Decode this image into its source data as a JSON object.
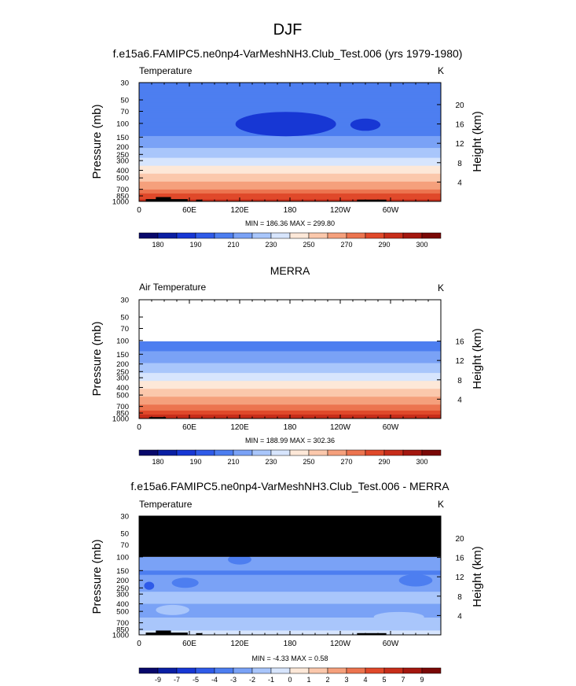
{
  "page_title": "DJF",
  "chart_data": [
    {
      "type": "heatmap",
      "title": "f.e15a6.FAMIPC5.ne0np4-VarMeshNH3.Club_Test.006 (yrs 1979-1980)",
      "left_label": "Temperature",
      "units": "K",
      "xlabel": "",
      "ylabel": "Pressure (mb)",
      "y2label": "Height (km)",
      "x_tick_labels": [
        "0",
        "60E",
        "120E",
        "180",
        "120W",
        "60W"
      ],
      "y_tick_values": [
        30,
        50,
        70,
        100,
        150,
        200,
        250,
        300,
        400,
        500,
        700,
        850,
        1000
      ],
      "y_tick_labels": [
        "30",
        "50",
        "70",
        "100",
        "150",
        "200",
        "250",
        "300",
        "400",
        "500",
        "700",
        "850",
        "1000"
      ],
      "height_ticks": [
        "20",
        "16",
        "12",
        "8",
        "4"
      ],
      "ylim": [
        30,
        1000
      ],
      "y_scale": "log-pressure",
      "stats": "MIN = 186.36  MAX = 299.80",
      "colorbar_labels": [
        "180",
        "190",
        "210",
        "230",
        "250",
        "270",
        "290",
        "300"
      ],
      "levels": [
        {
          "p": 30,
          "v": 205
        },
        {
          "p": 50,
          "v": 206
        },
        {
          "p": 60,
          "v": 206
        },
        {
          "p": 70,
          "v": 204
        },
        {
          "p": 100,
          "v": 201
        },
        {
          "p": 130,
          "v": 207
        },
        {
          "p": 150,
          "v": 211
        },
        {
          "p": 200,
          "v": 219
        },
        {
          "p": 250,
          "v": 226
        },
        {
          "p": 300,
          "v": 233
        },
        {
          "p": 400,
          "v": 246
        },
        {
          "p": 500,
          "v": 256
        },
        {
          "p": 600,
          "v": 264
        },
        {
          "p": 700,
          "v": 271
        },
        {
          "p": 850,
          "v": 283
        },
        {
          "p": 1000,
          "v": 294
        }
      ],
      "cold_spots": [
        {
          "lon": 175,
          "p": 102,
          "lonw": 60,
          "pw": 0.12
        },
        {
          "lon": 270,
          "p": 104,
          "lonw": 18,
          "pw": 0.06
        }
      ],
      "topography": [
        {
          "lon": [
            8,
            58
          ],
          "p": 935
        },
        {
          "lon": [
            20,
            38
          ],
          "p": 880
        },
        {
          "lon": [
            68,
            75
          ],
          "p": 950
        },
        {
          "lon": [
            260,
            295
          ],
          "p": 950
        }
      ]
    },
    {
      "type": "heatmap",
      "title": "MERRA",
      "left_label": "Air Temperature",
      "units": "K",
      "xlabel": "",
      "ylabel": "Pressure (mb)",
      "y2label": "Height (km)",
      "x_tick_labels": [
        "0",
        "60E",
        "120E",
        "180",
        "120W",
        "60W"
      ],
      "y_tick_values": [
        30,
        50,
        70,
        100,
        150,
        200,
        250,
        300,
        400,
        500,
        700,
        850,
        1000
      ],
      "y_tick_labels": [
        "30",
        "50",
        "70",
        "100",
        "150",
        "200",
        "250",
        "300",
        "400",
        "500",
        "700",
        "850",
        "1000"
      ],
      "height_ticks": [
        "16",
        "12",
        "8",
        "4"
      ],
      "ylim": [
        30,
        1000
      ],
      "y_scale": "log-pressure",
      "missing_above": 100,
      "stats": "MIN = 188.99  MAX = 302.36",
      "colorbar_labels": [
        "180",
        "190",
        "210",
        "230",
        "250",
        "270",
        "290",
        "300"
      ],
      "levels": [
        {
          "p": 100,
          "v": 203
        },
        {
          "p": 130,
          "v": 209
        },
        {
          "p": 150,
          "v": 213
        },
        {
          "p": 200,
          "v": 221
        },
        {
          "p": 250,
          "v": 228
        },
        {
          "p": 300,
          "v": 235
        },
        {
          "p": 400,
          "v": 248
        },
        {
          "p": 500,
          "v": 258
        },
        {
          "p": 600,
          "v": 266
        },
        {
          "p": 700,
          "v": 273
        },
        {
          "p": 850,
          "v": 285
        },
        {
          "p": 1000,
          "v": 296
        }
      ],
      "topography": [
        {
          "lon": [
            12,
            32
          ],
          "p": 960
        }
      ]
    },
    {
      "type": "heatmap",
      "title": "f.e15a6.FAMIPC5.ne0np4-VarMeshNH3.Club_Test.006 - MERRA",
      "left_label": "Temperature",
      "units": "K",
      "xlabel": "",
      "ylabel": "Pressure (mb)",
      "y2label": "Height (km)",
      "x_tick_labels": [
        "0",
        "60E",
        "120E",
        "180",
        "120W",
        "60W"
      ],
      "y_tick_values": [
        30,
        50,
        70,
        100,
        150,
        200,
        250,
        300,
        400,
        500,
        700,
        850,
        1000
      ],
      "y_tick_labels": [
        "30",
        "50",
        "70",
        "100",
        "150",
        "200",
        "250",
        "300",
        "400",
        "500",
        "700",
        "850",
        "1000"
      ],
      "height_ticks": [
        "20",
        "16",
        "12",
        "8",
        "4"
      ],
      "ylim": [
        30,
        1000
      ],
      "y_scale": "log-pressure",
      "missing_above": 100,
      "stats": "MIN =  -4.33  MAX =   0.58",
      "colorbar_labels": [
        "-9",
        "-7",
        "-5",
        "-4",
        "-3",
        "-2",
        "-1",
        "0",
        "1",
        "2",
        "3",
        "4",
        "5",
        "7",
        "9"
      ],
      "field": [
        {
          "p": 150,
          "lon": [
            0,
            360
          ],
          "v": -2
        },
        {
          "p": 170,
          "lon": [
            0,
            360
          ],
          "v": -3
        },
        {
          "p": 280,
          "lon": [
            0,
            360
          ],
          "v": -2
        },
        {
          "p": 400,
          "lon": [
            0,
            360
          ],
          "v": -1
        },
        {
          "p": 600,
          "lon": [
            0,
            360
          ],
          "v": -2
        },
        {
          "p": 880,
          "lon": [
            0,
            360
          ],
          "v": -1
        },
        {
          "p": 1000,
          "lon": [
            0,
            360
          ],
          "v": 0
        }
      ],
      "patches": [
        {
          "lon": 12,
          "p": 235,
          "lonw": 6,
          "pw": 0.04,
          "v": -4
        },
        {
          "lon": 120,
          "p": 108,
          "lonw": 14,
          "pw": 0.05,
          "v": -3
        },
        {
          "lon": 55,
          "p": 215,
          "lonw": 16,
          "pw": 0.05,
          "v": -3
        },
        {
          "lon": 330,
          "p": 200,
          "lonw": 20,
          "pw": 0.06,
          "v": -3
        },
        {
          "lon": 310,
          "p": 590,
          "lonw": 30,
          "pw": 0.05,
          "v": -1
        },
        {
          "lon": 40,
          "p": 480,
          "lonw": 20,
          "pw": 0.05,
          "v": -1
        }
      ],
      "topography": [
        {
          "lon": [
            8,
            58
          ],
          "p": 935
        },
        {
          "lon": [
            20,
            38
          ],
          "p": 880
        },
        {
          "lon": [
            68,
            75
          ],
          "p": 950
        },
        {
          "lon": [
            260,
            295
          ],
          "p": 950
        }
      ]
    }
  ],
  "colors": {
    "temp_palette": [
      "#08086b",
      "#0a1fa3",
      "#1737d4",
      "#2f5be8",
      "#4d7ef0",
      "#7aa2f6",
      "#a9c6fb",
      "#d7e5fd",
      "#fde8d8",
      "#fbc8ac",
      "#f5a07c",
      "#ec744f",
      "#e0492a",
      "#c72d1a",
      "#a4170f",
      "#7a0806"
    ],
    "diff_palette": [
      "#08086b",
      "#0a1fa3",
      "#1737d4",
      "#2f5be8",
      "#4d7ef0",
      "#7aa2f6",
      "#a9c6fb",
      "#d7e5fd",
      "#fde8d8",
      "#fbc8ac",
      "#f5a07c",
      "#ec744f",
      "#e0492a",
      "#c72d1a",
      "#a4170f",
      "#7a0806"
    ],
    "missing": "#000000",
    "topography": "#000000"
  }
}
